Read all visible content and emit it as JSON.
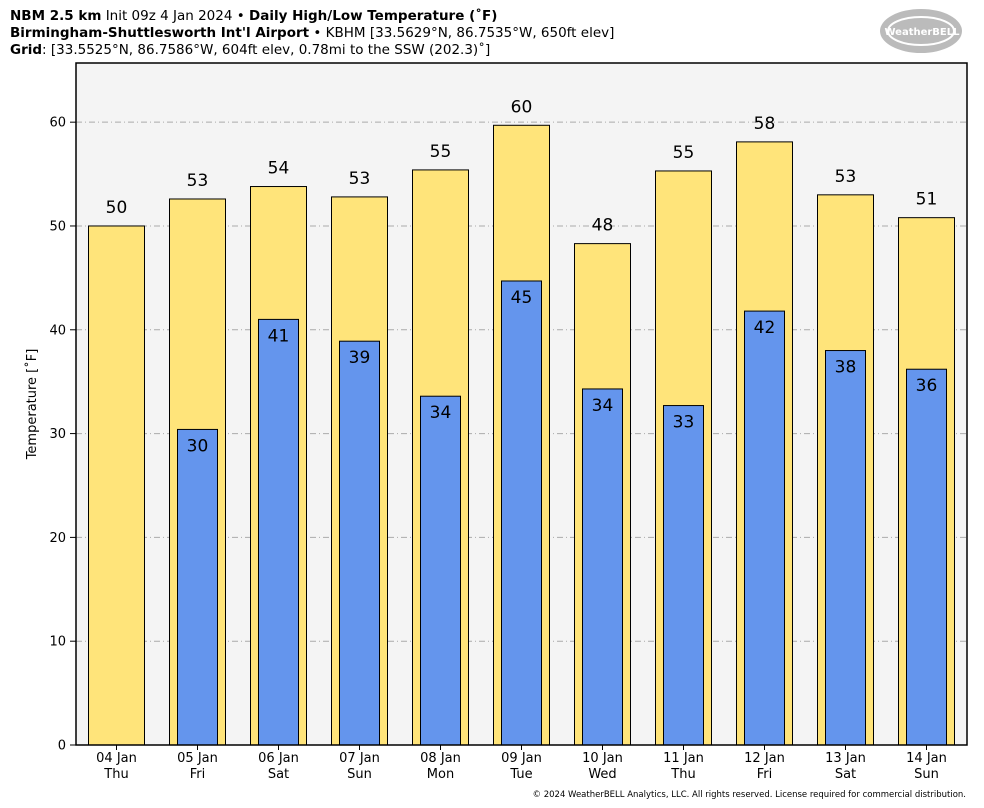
{
  "chart_data": {
    "type": "bar",
    "title_lines": [
      [
        "NBM 2.5 km",
        "Init 09z 4 Jan 2024 •",
        "Daily High/Low Temperature (˚F)"
      ],
      [
        "Birmingham-Shuttlesworth Int'l Airport",
        "• KBHM [33.5629°N, 86.7535°W, 650ft elev]"
      ],
      [
        "Grid",
        ": [33.5525°N, 86.7586°W, 604ft elev, 0.78mi to the SSW (202.3)˚]"
      ]
    ],
    "logo": "WeatherBELL",
    "ylabel": "Temperature [˚F]",
    "footer": "© 2024 WeatherBELL Analytics, LLC. All rights reserved. License required for commercial distribution.",
    "categories": [
      [
        "04 Jan",
        "Thu"
      ],
      [
        "05 Jan",
        "Fri"
      ],
      [
        "06 Jan",
        "Sat"
      ],
      [
        "07 Jan",
        "Sun"
      ],
      [
        "08 Jan",
        "Mon"
      ],
      [
        "09 Jan",
        "Tue"
      ],
      [
        "10 Jan",
        "Wed"
      ],
      [
        "11 Jan",
        "Thu"
      ],
      [
        "12 Jan",
        "Fri"
      ],
      [
        "13 Jan",
        "Sat"
      ],
      [
        "14 Jan",
        "Sun"
      ]
    ],
    "series": [
      {
        "name": "High",
        "color": "#ffe47a",
        "values": [
          50.0,
          52.6,
          53.8,
          52.8,
          55.4,
          59.7,
          48.3,
          55.3,
          58.1,
          53.0,
          50.8
        ],
        "value_labels": [
          "50",
          "53",
          "54",
          "53",
          "55",
          "60",
          "48",
          "55",
          "58",
          "53",
          "51"
        ]
      },
      {
        "name": "Low",
        "color": "#6495ed",
        "values": [
          null,
          30.4,
          41.0,
          38.9,
          33.6,
          44.7,
          34.3,
          32.7,
          41.8,
          38.0,
          36.2
        ],
        "value_labels": [
          null,
          "30",
          "41",
          "39",
          "34",
          "45",
          "34",
          "33",
          "42",
          "38",
          "36"
        ]
      }
    ],
    "ylim": [
      0,
      65.7
    ],
    "yticks": [
      0,
      10,
      20,
      30,
      40,
      50,
      60
    ],
    "grid": true
  }
}
